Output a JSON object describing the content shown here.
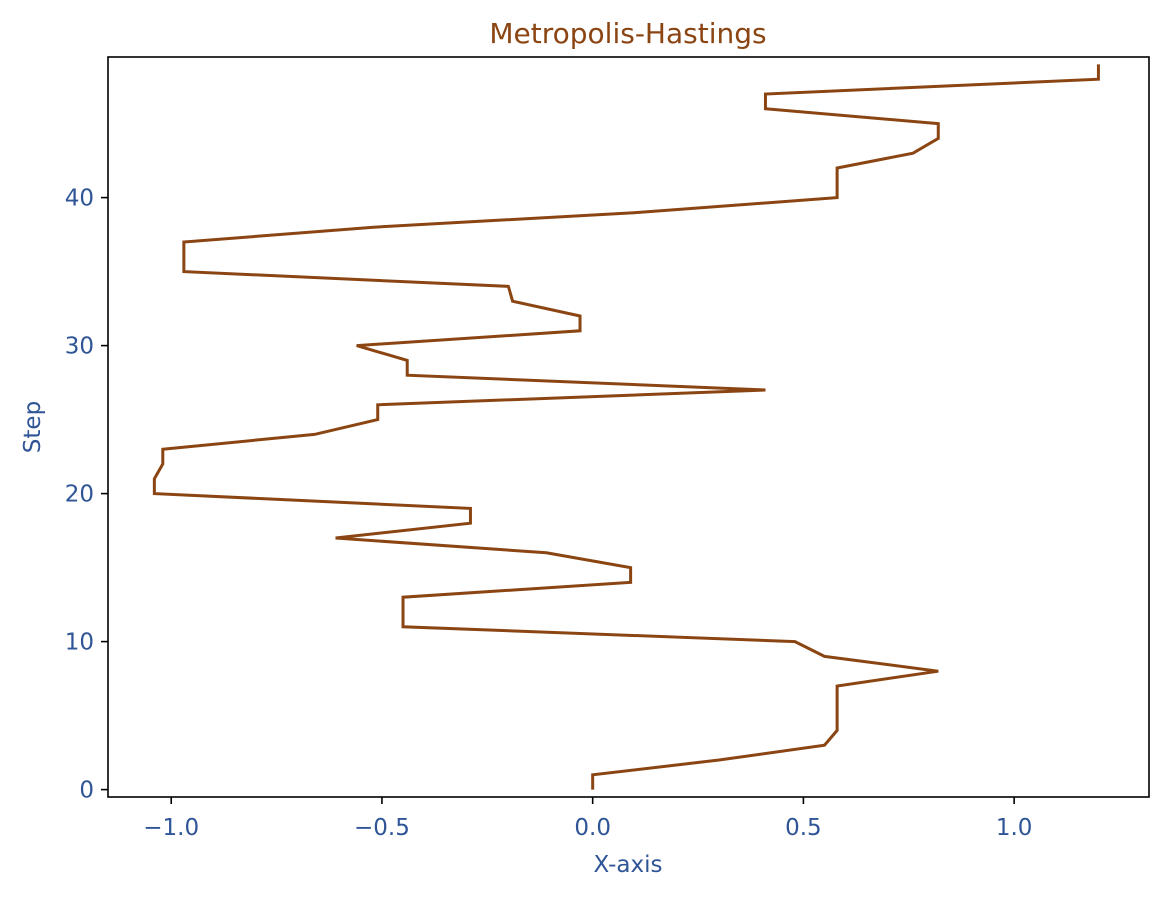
{
  "colors": {
    "line": "#8B4513",
    "title": "#8B4513",
    "axis_text": "#2F5597",
    "frame": "#000000",
    "background": "#ffffff"
  },
  "chart_data": {
    "type": "line",
    "orientation": "steps-vertical",
    "title": "Metropolis-Hastings",
    "xlabel": "X-axis",
    "ylabel": "Step",
    "xlim": [
      -1.15,
      1.32
    ],
    "ylim": [
      -0.5,
      49.5
    ],
    "xticks": [
      -1.0,
      -0.5,
      0.0,
      0.5,
      1.0
    ],
    "xtick_labels": [
      "−1.0",
      "−0.5",
      "0.0",
      "0.5",
      "1.0"
    ],
    "yticks": [
      0,
      10,
      20,
      30,
      40
    ],
    "ytick_labels": [
      "0",
      "10",
      "20",
      "30",
      "40"
    ],
    "grid": false,
    "series": [
      {
        "x": [
          0.0,
          0.0,
          0.3,
          0.55,
          0.58,
          0.58,
          0.58,
          0.58,
          0.82,
          0.55,
          0.48,
          -0.45,
          -0.45,
          -0.45,
          0.09,
          0.09,
          -0.11,
          -0.61,
          -0.29,
          -0.29,
          -1.04,
          -1.04,
          -1.02,
          -1.02,
          -0.66,
          -0.51,
          -0.51,
          0.41,
          -0.44,
          -0.44,
          -0.56,
          -0.03,
          -0.03,
          -0.19,
          -0.2,
          -0.97,
          -0.97,
          -0.97,
          -0.52,
          0.11,
          0.58,
          0.58,
          0.58,
          0.76,
          0.82,
          0.82,
          0.41,
          0.41,
          1.2,
          1.2
        ],
        "y": [
          0,
          1,
          2,
          3,
          4,
          5,
          6,
          7,
          8,
          9,
          10,
          11,
          12,
          13,
          14,
          15,
          16,
          17,
          18,
          19,
          20,
          21,
          22,
          23,
          24,
          25,
          26,
          27,
          28,
          29,
          30,
          31,
          32,
          33,
          34,
          35,
          36,
          37,
          38,
          39,
          40,
          41,
          42,
          43,
          44,
          45,
          46,
          47,
          48,
          49
        ]
      }
    ]
  }
}
